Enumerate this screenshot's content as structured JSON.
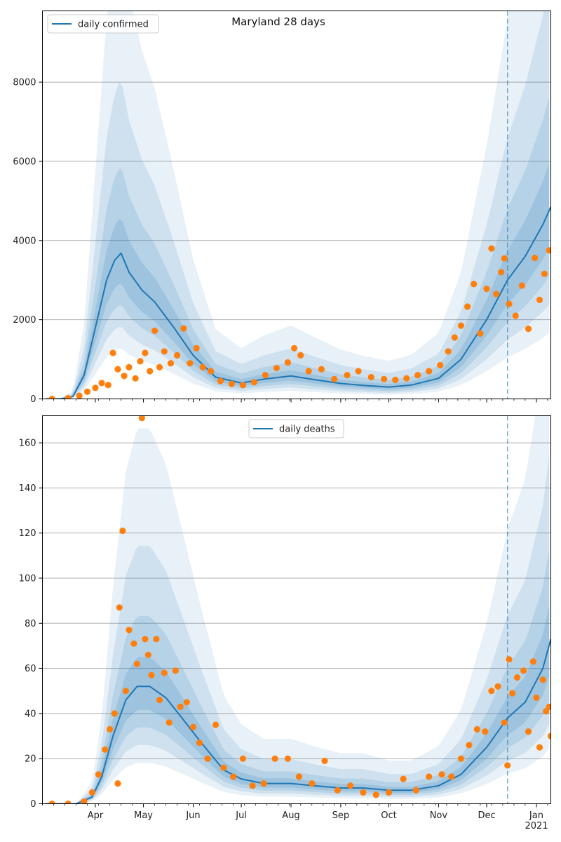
{
  "colors": {
    "model_line": "#1f77b4",
    "observed_points": "#ff7f0e",
    "band": "#1f77b4",
    "grid": "#b0b0b0",
    "forecast_marker": "#1f77b4"
  },
  "x_axis": {
    "months": [
      "Apr",
      "May",
      "Jun",
      "Jul",
      "Aug",
      "Sep",
      "Oct",
      "Nov",
      "Dec",
      "Jan"
    ],
    "year_label": "2021",
    "range": [
      "2020-02-28",
      "2021-01-10"
    ],
    "forecast_start": "2020-12-14"
  },
  "chart_data": [
    {
      "type": "line",
      "title": "Maryland 28 days",
      "legend": {
        "label": "daily confirmed",
        "placement": "top-left"
      },
      "ylim": [
        0,
        9800
      ],
      "yticks": [
        "0",
        "2000",
        "4000",
        "6000",
        "8000"
      ],
      "grid": "horizontal",
      "series": [
        {
          "name": "daily confirmed",
          "kind": "model-median",
          "points": [
            [
              "2020-03-01",
              0
            ],
            [
              "2020-03-10",
              0
            ],
            [
              "2020-03-18",
              60
            ],
            [
              "2020-03-25",
              600
            ],
            [
              "2020-04-01",
              1800
            ],
            [
              "2020-04-08",
              3000
            ],
            [
              "2020-04-13",
              3500
            ],
            [
              "2020-04-17",
              3680
            ],
            [
              "2020-04-22",
              3200
            ],
            [
              "2020-04-30",
              2750
            ],
            [
              "2020-05-08",
              2450
            ],
            [
              "2020-05-20",
              1800
            ],
            [
              "2020-06-01",
              1100
            ],
            [
              "2020-06-15",
              550
            ],
            [
              "2020-07-01",
              400
            ],
            [
              "2020-07-15",
              500
            ],
            [
              "2020-08-01",
              580
            ],
            [
              "2020-08-15",
              490
            ],
            [
              "2020-09-01",
              390
            ],
            [
              "2020-09-15",
              340
            ],
            [
              "2020-10-01",
              300
            ],
            [
              "2020-10-15",
              350
            ],
            [
              "2020-11-01",
              520
            ],
            [
              "2020-11-15",
              1000
            ],
            [
              "2020-12-01",
              2000
            ],
            [
              "2020-12-14",
              3000
            ],
            [
              "2020-12-25",
              3600
            ],
            [
              "2021-01-05",
              4400
            ],
            [
              "2021-01-10",
              4850
            ]
          ]
        },
        {
          "name": "observed daily confirmed",
          "kind": "observed",
          "points": [
            [
              "2020-03-05",
              0
            ],
            [
              "2020-03-15",
              20
            ],
            [
              "2020-03-22",
              80
            ],
            [
              "2020-03-27",
              180
            ],
            [
              "2020-04-01",
              280
            ],
            [
              "2020-04-05",
              400
            ],
            [
              "2020-04-09",
              350
            ],
            [
              "2020-04-12",
              1160
            ],
            [
              "2020-04-15",
              750
            ],
            [
              "2020-04-19",
              580
            ],
            [
              "2020-04-22",
              800
            ],
            [
              "2020-04-26",
              520
            ],
            [
              "2020-04-29",
              950
            ],
            [
              "2020-05-02",
              1160
            ],
            [
              "2020-05-05",
              700
            ],
            [
              "2020-05-08",
              1720
            ],
            [
              "2020-05-11",
              800
            ],
            [
              "2020-05-14",
              1200
            ],
            [
              "2020-05-18",
              900
            ],
            [
              "2020-05-22",
              1100
            ],
            [
              "2020-05-26",
              1780
            ],
            [
              "2020-05-30",
              900
            ],
            [
              "2020-06-03",
              1280
            ],
            [
              "2020-06-07",
              800
            ],
            [
              "2020-06-12",
              700
            ],
            [
              "2020-06-18",
              450
            ],
            [
              "2020-06-25",
              380
            ],
            [
              "2020-07-02",
              350
            ],
            [
              "2020-07-09",
              420
            ],
            [
              "2020-07-16",
              600
            ],
            [
              "2020-07-23",
              780
            ],
            [
              "2020-07-30",
              920
            ],
            [
              "2020-08-03",
              1280
            ],
            [
              "2020-08-07",
              1100
            ],
            [
              "2020-08-12",
              700
            ],
            [
              "2020-08-20",
              750
            ],
            [
              "2020-08-28",
              500
            ],
            [
              "2020-09-05",
              600
            ],
            [
              "2020-09-12",
              700
            ],
            [
              "2020-09-20",
              550
            ],
            [
              "2020-09-28",
              500
            ],
            [
              "2020-10-05",
              480
            ],
            [
              "2020-10-12",
              520
            ],
            [
              "2020-10-19",
              600
            ],
            [
              "2020-10-26",
              700
            ],
            [
              "2020-11-02",
              850
            ],
            [
              "2020-11-07",
              1200
            ],
            [
              "2020-11-11",
              1550
            ],
            [
              "2020-11-15",
              1850
            ],
            [
              "2020-11-19",
              2330
            ],
            [
              "2020-11-23",
              2900
            ],
            [
              "2020-11-27",
              1650
            ],
            [
              "2020-12-01",
              2780
            ],
            [
              "2020-12-04",
              3800
            ],
            [
              "2020-12-07",
              2650
            ],
            [
              "2020-12-10",
              3200
            ],
            [
              "2020-12-12",
              3550
            ],
            [
              "2020-12-15",
              2400
            ],
            [
              "2020-12-19",
              2100
            ],
            [
              "2020-12-23",
              2860
            ],
            [
              "2020-12-27",
              1770
            ],
            [
              "2020-12-31",
              3560
            ],
            [
              "2021-01-03",
              2500
            ],
            [
              "2021-01-06",
              3160
            ],
            [
              "2021-01-09",
              3750
            ]
          ]
        }
      ]
    },
    {
      "type": "line",
      "legend": {
        "label": "daily deaths",
        "placement": "top-center"
      },
      "ylim": [
        0,
        172
      ],
      "yticks": [
        "0",
        "20",
        "40",
        "60",
        "80",
        "100",
        "120",
        "140",
        "160"
      ],
      "grid": "horizontal",
      "series": [
        {
          "name": "daily deaths",
          "kind": "model-median",
          "points": [
            [
              "2020-03-01",
              0
            ],
            [
              "2020-03-20",
              0
            ],
            [
              "2020-03-30",
              3
            ],
            [
              "2020-04-05",
              12
            ],
            [
              "2020-04-12",
              30
            ],
            [
              "2020-04-20",
              46
            ],
            [
              "2020-04-27",
              52
            ],
            [
              "2020-05-05",
              52
            ],
            [
              "2020-05-15",
              47
            ],
            [
              "2020-05-25",
              38
            ],
            [
              "2020-06-05",
              28
            ],
            [
              "2020-06-20",
              15
            ],
            [
              "2020-07-01",
              11
            ],
            [
              "2020-07-15",
              9
            ],
            [
              "2020-08-01",
              9
            ],
            [
              "2020-08-15",
              8
            ],
            [
              "2020-09-01",
              7
            ],
            [
              "2020-09-15",
              7
            ],
            [
              "2020-10-01",
              6
            ],
            [
              "2020-10-15",
              6
            ],
            [
              "2020-11-01",
              8
            ],
            [
              "2020-11-15",
              13
            ],
            [
              "2020-12-01",
              25
            ],
            [
              "2020-12-14",
              38
            ],
            [
              "2020-12-25",
              45
            ],
            [
              "2021-01-05",
              60
            ],
            [
              "2021-01-10",
              73
            ]
          ]
        },
        {
          "name": "observed daily deaths",
          "kind": "observed",
          "points": [
            [
              "2020-03-05",
              0
            ],
            [
              "2020-03-15",
              0
            ],
            [
              "2020-03-25",
              1
            ],
            [
              "2020-03-30",
              5
            ],
            [
              "2020-04-03",
              13
            ],
            [
              "2020-04-07",
              24
            ],
            [
              "2020-04-10",
              33
            ],
            [
              "2020-04-13",
              40
            ],
            [
              "2020-04-15",
              9
            ],
            [
              "2020-04-16",
              87
            ],
            [
              "2020-04-18",
              121
            ],
            [
              "2020-04-20",
              50
            ],
            [
              "2020-04-22",
              77
            ],
            [
              "2020-04-25",
              71
            ],
            [
              "2020-04-27",
              62
            ],
            [
              "2020-04-30",
              171
            ],
            [
              "2020-05-02",
              73
            ],
            [
              "2020-05-04",
              66
            ],
            [
              "2020-05-06",
              57
            ],
            [
              "2020-05-09",
              73
            ],
            [
              "2020-05-11",
              46
            ],
            [
              "2020-05-14",
              58
            ],
            [
              "2020-05-17",
              36
            ],
            [
              "2020-05-21",
              59
            ],
            [
              "2020-05-24",
              43
            ],
            [
              "2020-05-28",
              45
            ],
            [
              "2020-06-01",
              34
            ],
            [
              "2020-06-05",
              27
            ],
            [
              "2020-06-10",
              20
            ],
            [
              "2020-06-15",
              35
            ],
            [
              "2020-06-20",
              16
            ],
            [
              "2020-06-26",
              12
            ],
            [
              "2020-07-02",
              20
            ],
            [
              "2020-07-08",
              8
            ],
            [
              "2020-07-15",
              9
            ],
            [
              "2020-07-22",
              20
            ],
            [
              "2020-07-30",
              20
            ],
            [
              "2020-08-06",
              12
            ],
            [
              "2020-08-14",
              9
            ],
            [
              "2020-08-22",
              19
            ],
            [
              "2020-08-30",
              6
            ],
            [
              "2020-09-07",
              8
            ],
            [
              "2020-09-15",
              5
            ],
            [
              "2020-09-23",
              4
            ],
            [
              "2020-10-01",
              5
            ],
            [
              "2020-10-10",
              11
            ],
            [
              "2020-10-18",
              6
            ],
            [
              "2020-10-26",
              12
            ],
            [
              "2020-11-03",
              13
            ],
            [
              "2020-11-09",
              12
            ],
            [
              "2020-11-15",
              20
            ],
            [
              "2020-11-20",
              26
            ],
            [
              "2020-11-25",
              33
            ],
            [
              "2020-11-30",
              32
            ],
            [
              "2020-12-04",
              50
            ],
            [
              "2020-12-08",
              52
            ],
            [
              "2020-12-12",
              36
            ],
            [
              "2020-12-14",
              17
            ],
            [
              "2020-12-15",
              64
            ],
            [
              "2020-12-17",
              49
            ],
            [
              "2020-12-20",
              56
            ],
            [
              "2020-12-24",
              59
            ],
            [
              "2020-12-27",
              32
            ],
            [
              "2020-12-30",
              63
            ],
            [
              "2021-01-01",
              47
            ],
            [
              "2021-01-03",
              25
            ],
            [
              "2021-01-05",
              55
            ],
            [
              "2021-01-07",
              41
            ],
            [
              "2021-01-09",
              43
            ],
            [
              "2021-01-10",
              30
            ]
          ]
        }
      ]
    }
  ]
}
